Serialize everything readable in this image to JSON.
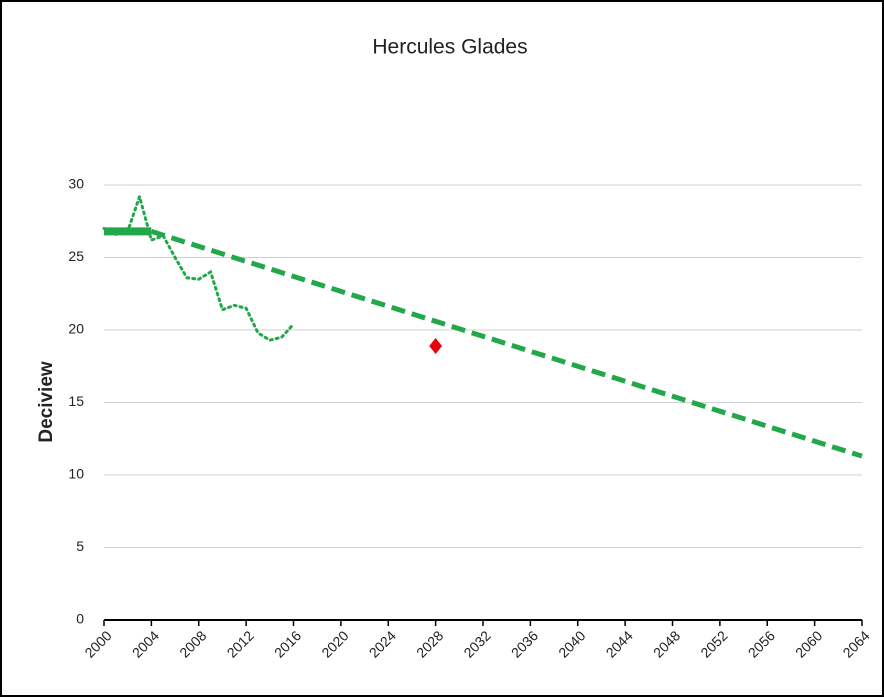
{
  "chart_data": {
    "type": "line",
    "title": "Hercules Glades",
    "y_label": "Deciview",
    "xlim": [
      2000,
      2064
    ],
    "xticks": [
      2000,
      2004,
      2008,
      2012,
      2016,
      2020,
      2024,
      2028,
      2032,
      2036,
      2040,
      2044,
      2048,
      2052,
      2056,
      2060,
      2064
    ],
    "ylim": [
      0,
      30
    ],
    "yticks": [
      0,
      5,
      10,
      15,
      20,
      25,
      30
    ],
    "grid": true,
    "series": [
      {
        "color": "#22a84a",
        "style": "solid",
        "x": [
          2000,
          2004
        ],
        "values": [
          26.8,
          26.8
        ]
      },
      {
        "color": "#22a84a",
        "style": "dotted",
        "x": [
          2000,
          2001,
          2002,
          2003,
          2004,
          2005,
          2006,
          2007,
          2008,
          2009,
          2010,
          2011,
          2012,
          2013,
          2014,
          2015,
          2016
        ],
        "values": [
          27.0,
          26.6,
          26.8,
          29.2,
          26.2,
          26.5,
          25.0,
          23.6,
          23.5,
          24.0,
          21.4,
          21.7,
          21.5,
          19.8,
          19.3,
          19.5,
          20.4
        ]
      },
      {
        "color": "#22a84a",
        "style": "dashed",
        "x": [
          2004,
          2064
        ],
        "values": [
          26.8,
          11.3
        ]
      },
      {
        "color": "#e8000b",
        "style": "diamond",
        "x": [
          2028
        ],
        "values": [
          18.9
        ]
      }
    ]
  }
}
